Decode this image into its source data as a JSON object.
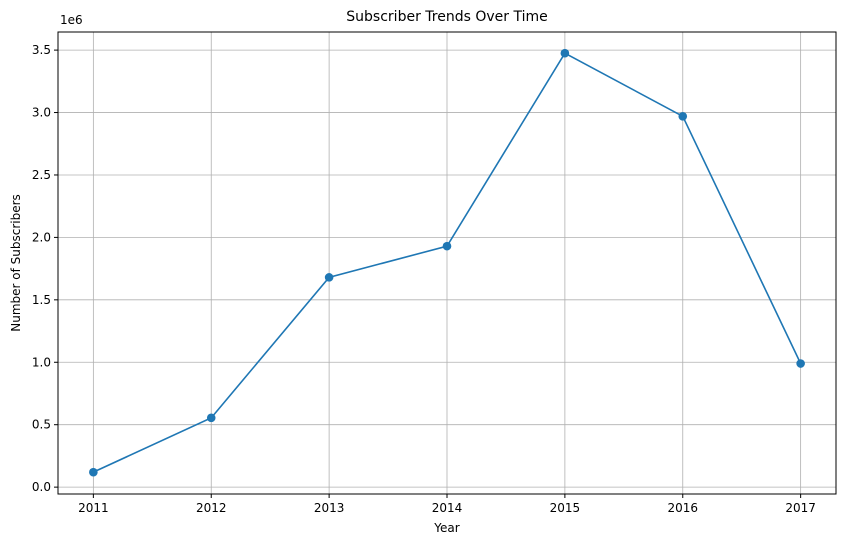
{
  "chart_data": {
    "type": "line",
    "title": "Subscriber Trends Over Time",
    "xlabel": "Year",
    "ylabel": "Number of Subscribers",
    "y_offset_label": "1e6",
    "x": [
      2011,
      2012,
      2013,
      2014,
      2015,
      2016,
      2017
    ],
    "x_tick_labels": [
      "2011",
      "2012",
      "2013",
      "2014",
      "2015",
      "2016",
      "2017"
    ],
    "series": [
      {
        "values": [
          120000,
          555000,
          1680000,
          1930000,
          3475000,
          2970000,
          990000
        ],
        "color": "#1f77b4",
        "marker": "circle"
      }
    ],
    "y_ticks": [
      0,
      500000,
      1000000,
      1500000,
      2000000,
      2500000,
      3000000,
      3500000
    ],
    "y_tick_labels": [
      "0.0",
      "0.5",
      "1.0",
      "1.5",
      "2.0",
      "2.5",
      "3.0",
      "3.5"
    ],
    "xlim": [
      2010.7,
      2017.3
    ],
    "ylim": [
      -55000,
      3645000
    ],
    "grid": true
  }
}
